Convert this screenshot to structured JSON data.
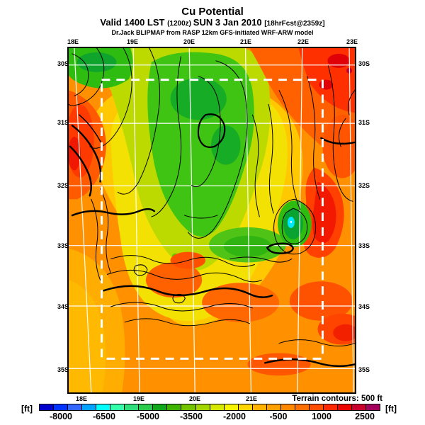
{
  "header": {
    "title": "Cu Potential",
    "valid_line": {
      "part1": "Valid 1400 LST ",
      "part2": "(1200z) ",
      "part3": "SUN 3 Jan 2010 ",
      "part4": "[18hrFcst@2359z]"
    },
    "model_line": "Dr.Jack BLIPMAP from RASP 12km GFS-initiated WRF-ARW model"
  },
  "map": {
    "top_lon_labels": [
      "18E",
      "19E",
      "20E",
      "21E",
      "22E",
      "23E"
    ],
    "bottom_lon_labels": [
      "18E",
      "19E",
      "20E",
      "21E"
    ],
    "left_lat_labels": [
      "30S",
      "31S",
      "32S",
      "33S",
      "34S",
      "35S"
    ],
    "right_lat_labels": [
      "30S",
      "31S",
      "32S",
      "33S",
      "34S",
      "35S"
    ],
    "terrain_note": "Terrain contours: 500 ft"
  },
  "colorbar": {
    "unit_left": "[ft]",
    "unit_right": "[ft]",
    "tick_labels": [
      "-8000",
      "-6500",
      "-5000",
      "-3500",
      "-2000",
      "-500",
      "1000",
      "2500"
    ],
    "segment_colors": [
      "#0000CD",
      "#0033FF",
      "#3366FF",
      "#00A3FF",
      "#00FFFF",
      "#33FFAA",
      "#2EDD7C",
      "#2BCC4E",
      "#12A81B",
      "#3FB400",
      "#73C300",
      "#A3D500",
      "#D6E800",
      "#F6F400",
      "#FFD500",
      "#FFB300",
      "#FFA000",
      "#FF8800",
      "#FF6F00",
      "#FF4D00",
      "#FF2800",
      "#EC0400",
      "#C9002E",
      "#A1005C"
    ],
    "units_ft": "ft",
    "contour_interval_ft": 500
  }
}
